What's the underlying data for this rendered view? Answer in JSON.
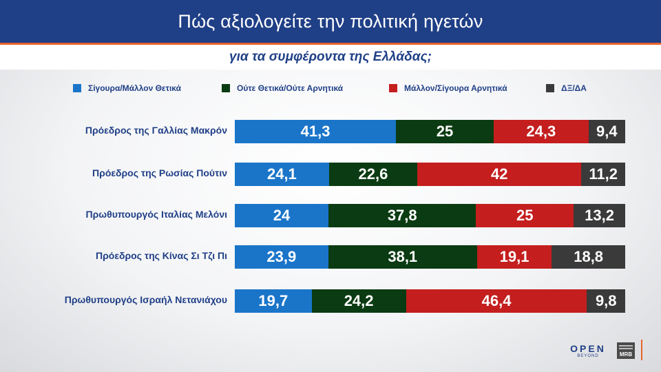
{
  "header": {
    "title": "Πώς αξιολογείτε την πολιτική ηγετών",
    "subtitle": "για τα συμφέροντα της Ελλάδας;"
  },
  "colors": {
    "header_bg": "#1f3f86",
    "accent_line": "#e8632b",
    "positive": "#1a75c9",
    "neutral": "#0b3b12",
    "negative": "#c41e1e",
    "dk_na": "#3a3a3a"
  },
  "legend": [
    {
      "label": "Σίγουρα/Μάλλον Θετικά",
      "color": "#1a75c9"
    },
    {
      "label": "Ούτε Θετικά/Ούτε Αρνητικά",
      "color": "#0b3b12"
    },
    {
      "label": "Μάλλον/Σίγουρα Αρνητικά",
      "color": "#c41e1e"
    },
    {
      "label": "ΔΞ/ΔΑ",
      "color": "#3a3a3a"
    }
  ],
  "chart_data": {
    "type": "bar",
    "orientation": "horizontal",
    "stacked": true,
    "title": "Πώς αξιολογείτε την πολιτική ηγετών",
    "subtitle": "για τα συμφέροντα της Ελλάδας;",
    "categories": [
      "Πρόεδρος της Γαλλίας Μακρόν",
      "Πρόεδρος της Ρωσίας Πούτιν",
      "Πρωθυπουργός Ιταλίας Μελόνι",
      "Πρόεδρος της Κίνας Σι Τζι Πι",
      "Πρωθυπουργός Ισραήλ Νετανιάχου"
    ],
    "series": [
      {
        "name": "Σίγουρα/Μάλλον Θετικά",
        "color": "#1a75c9",
        "values": [
          41.3,
          24.1,
          24,
          23.9,
          19.7
        ],
        "labels": [
          "41,3",
          "24,1",
          "24",
          "23,9",
          "19,7"
        ]
      },
      {
        "name": "Ούτε Θετικά/Ούτε Αρνητικά",
        "color": "#0b3b12",
        "values": [
          25,
          22.6,
          37.8,
          38.1,
          24.2
        ],
        "labels": [
          "25",
          "22,6",
          "37,8",
          "38,1",
          "24,2"
        ]
      },
      {
        "name": "Μάλλον/Σίγουρα Αρνητικά",
        "color": "#c41e1e",
        "values": [
          24.3,
          42,
          25,
          19.1,
          46.4
        ],
        "labels": [
          "24,3",
          "42",
          "25",
          "19,1",
          "46,4"
        ]
      },
      {
        "name": "ΔΞ/ΔΑ",
        "color": "#3a3a3a",
        "values": [
          9.4,
          11.2,
          13.2,
          18.8,
          9.8
        ],
        "labels": [
          "9,4",
          "11,2",
          "13,2",
          "18,8",
          "9,8"
        ]
      }
    ],
    "legend_position": "top",
    "grid": false
  },
  "logos": {
    "open_main": "OPEN",
    "open_sub": "BEYOND",
    "mrb": "MRB"
  }
}
